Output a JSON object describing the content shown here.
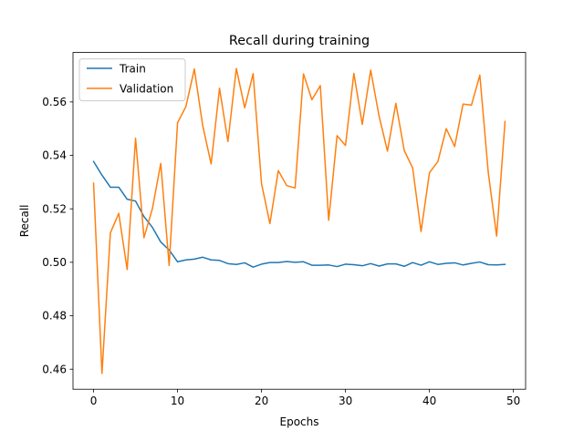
{
  "chart_data": {
    "type": "line",
    "title": "Recall during training",
    "xlabel": "Epochs",
    "ylabel": "Recall",
    "xlim": [
      -2.45,
      51.45
    ],
    "ylim": [
      0.4525,
      0.5785
    ],
    "xticks": [
      0,
      10,
      20,
      30,
      40,
      50
    ],
    "xtick_labels": [
      "0",
      "10",
      "20",
      "30",
      "40",
      "50"
    ],
    "yticks": [
      0.46,
      0.48,
      0.5,
      0.52,
      0.54,
      0.56
    ],
    "ytick_labels": [
      "0.46",
      "0.48",
      "0.50",
      "0.52",
      "0.54",
      "0.56"
    ],
    "grid": false,
    "legend_position": "top-left",
    "x": [
      0,
      1,
      2,
      3,
      4,
      5,
      6,
      7,
      8,
      9,
      10,
      11,
      12,
      13,
      14,
      15,
      16,
      17,
      18,
      19,
      20,
      21,
      22,
      23,
      24,
      25,
      26,
      27,
      28,
      29,
      30,
      31,
      32,
      33,
      34,
      35,
      36,
      37,
      38,
      39,
      40,
      41,
      42,
      43,
      44,
      45,
      46,
      47,
      48,
      49
    ],
    "series": [
      {
        "name": "Train",
        "color": "#1f77b4",
        "values": [
          0.5377,
          0.5326,
          0.5281,
          0.5281,
          0.5236,
          0.5229,
          0.5171,
          0.5131,
          0.5076,
          0.5046,
          0.5002,
          0.5009,
          0.5012,
          0.5019,
          0.5009,
          0.5007,
          0.4995,
          0.4992,
          0.4998,
          0.4982,
          0.4993,
          0.4999,
          0.4999,
          0.5003,
          0.5,
          0.5002,
          0.4989,
          0.4989,
          0.499,
          0.4984,
          0.4993,
          0.4991,
          0.4987,
          0.4995,
          0.4986,
          0.4994,
          0.4994,
          0.4985,
          0.4999,
          0.4989,
          0.5002,
          0.4992,
          0.4996,
          0.4998,
          0.499,
          0.4996,
          0.5001,
          0.4991,
          0.499,
          0.4992
        ]
      },
      {
        "name": "Validation",
        "color": "#ff7f0e",
        "values": [
          0.5296,
          0.4584,
          0.511,
          0.5183,
          0.4973,
          0.5464,
          0.5092,
          0.52,
          0.537,
          0.4988,
          0.5522,
          0.5583,
          0.5723,
          0.5511,
          0.5368,
          0.5651,
          0.5452,
          0.5725,
          0.5578,
          0.5706,
          0.5294,
          0.5145,
          0.5343,
          0.5287,
          0.5278,
          0.5705,
          0.5608,
          0.5661,
          0.5157,
          0.5474,
          0.5437,
          0.5707,
          0.5516,
          0.5719,
          0.5547,
          0.5416,
          0.5595,
          0.5418,
          0.5353,
          0.5115,
          0.5335,
          0.5377,
          0.55,
          0.5433,
          0.5592,
          0.5588,
          0.57,
          0.5337,
          0.5098,
          0.5527
        ]
      }
    ]
  }
}
